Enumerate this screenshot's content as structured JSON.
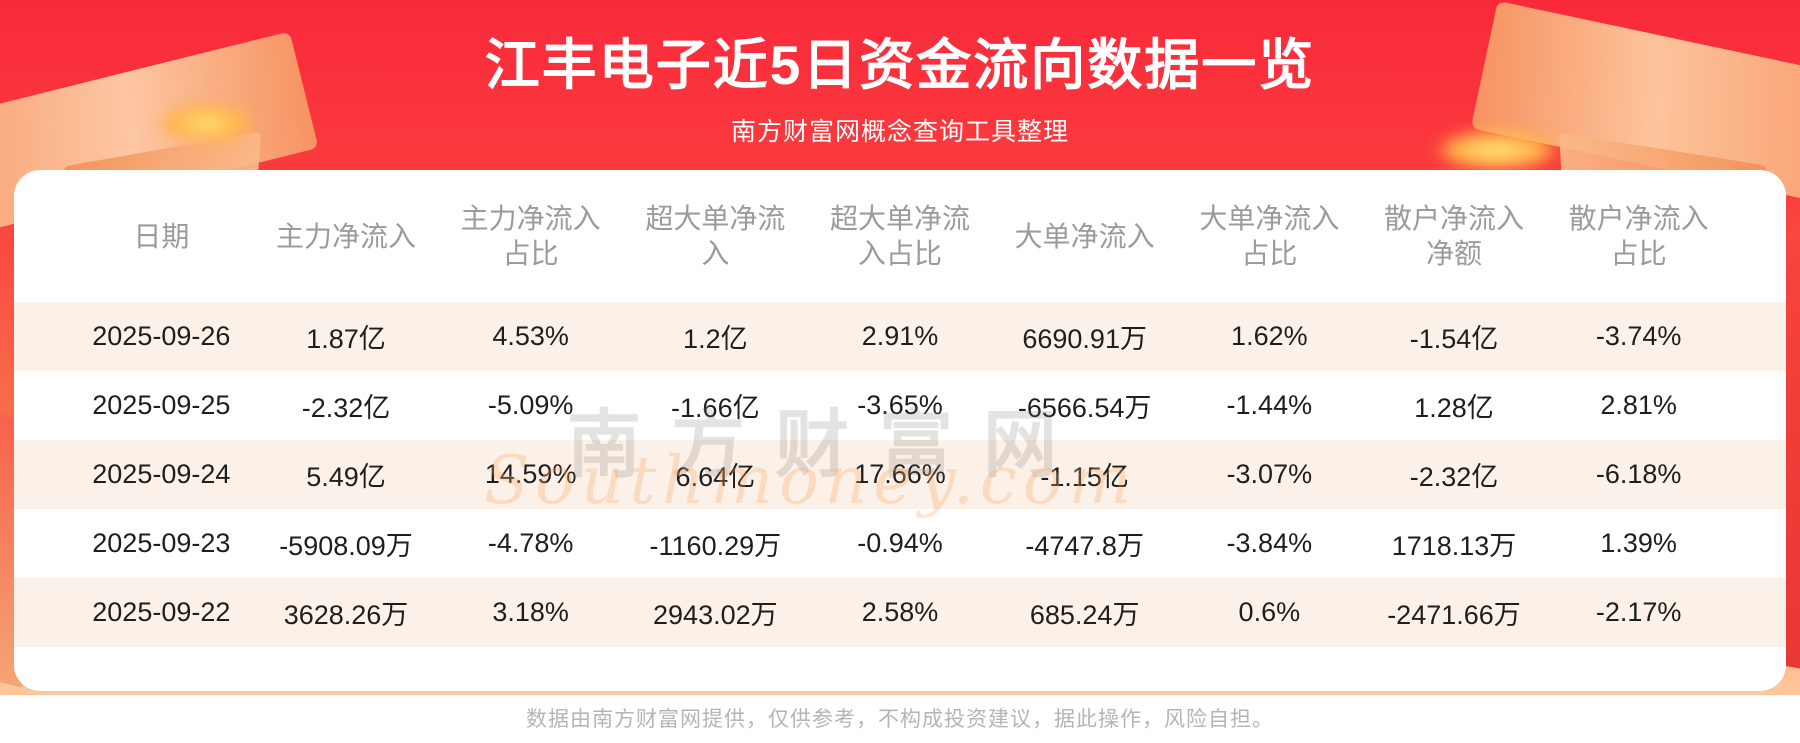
{
  "page": {
    "title": "江丰电子近5日资金流向数据一览",
    "subtitle": "南方财富网概念查询工具整理",
    "footer_disclaimer": "数据由南方财富网提供，仅供参考，不构成投资建议，据此操作，风险自担。"
  },
  "watermark": {
    "cn": "南方财富网",
    "en": "Southmoney.com"
  },
  "colors": {
    "banner_red_top": "#f9293a",
    "banner_peach_bottom": "#fdc89c",
    "row_alt_background": "#fcf1e8",
    "header_text": "#9b9b9b",
    "body_text": "#1e1e1e",
    "footer_text": "#b5b5b5",
    "title_text": "#ffffff"
  },
  "chart_data": {
    "type": "table",
    "title": "江丰电子近5日资金流向数据一览",
    "subtitle": "南方财富网概念查询工具整理",
    "columns": [
      "日期",
      "主力净流入",
      "主力净流入占比",
      "超大单净流入",
      "超大单净流入占比",
      "大单净流入",
      "大单净流入占比",
      "散户净流入净额",
      "散户净流入占比"
    ],
    "rows": [
      [
        "2025-09-26",
        "1.87亿",
        "4.53%",
        "1.2亿",
        "2.91%",
        "6690.91万",
        "1.62%",
        "-1.54亿",
        "-3.74%"
      ],
      [
        "2025-09-25",
        "-2.32亿",
        "-5.09%",
        "-1.66亿",
        "-3.65%",
        "-6566.54万",
        "-1.44%",
        "1.28亿",
        "2.81%"
      ],
      [
        "2025-09-24",
        "5.49亿",
        "14.59%",
        "6.64亿",
        "17.66%",
        "-1.15亿",
        "-3.07%",
        "-2.32亿",
        "-6.18%"
      ],
      [
        "2025-09-23",
        "-5908.09万",
        "-4.78%",
        "-1160.29万",
        "-0.94%",
        "-4747.8万",
        "-3.84%",
        "1718.13万",
        "1.39%"
      ],
      [
        "2025-09-22",
        "3628.26万",
        "3.18%",
        "2943.02万",
        "2.58%",
        "685.24万",
        "0.6%",
        "-2471.66万",
        "-2.17%"
      ]
    ]
  }
}
